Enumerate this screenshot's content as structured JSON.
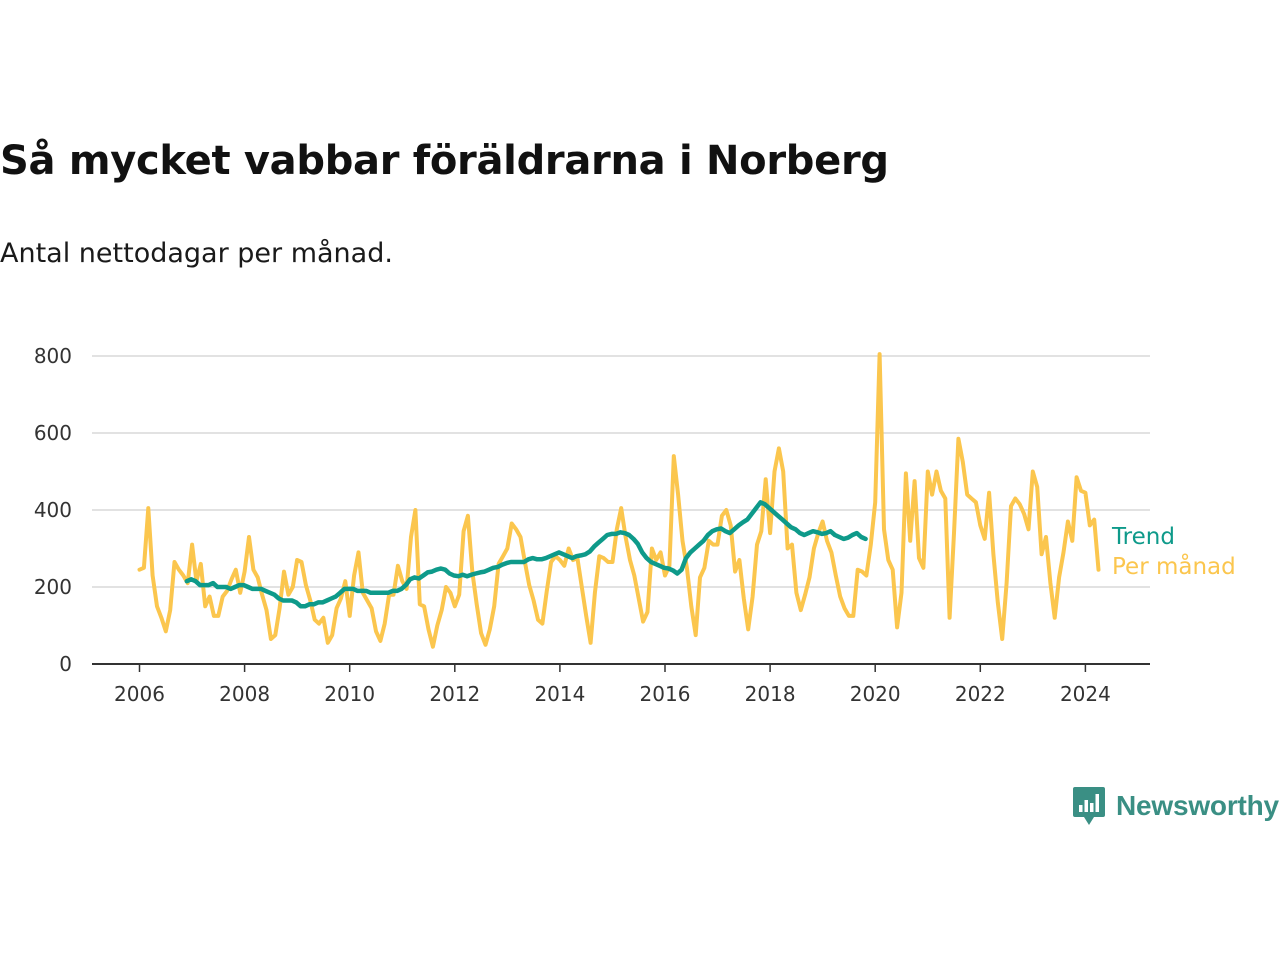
{
  "title": "Så mycket vabbar föräldrarna i Norberg",
  "subtitle": "Antal nettodagar per månad.",
  "brand": {
    "name": "Newsworthy",
    "color": "#3a8f84",
    "icon": "chart-bubble-logo"
  },
  "colors": {
    "trend": "#0e9a8a",
    "monthly": "#fbc64e",
    "grid": "#d9d9d9",
    "axis": "#333333"
  },
  "chart_data": {
    "type": "line",
    "x_unit": "decimal year",
    "xlim": [
      2006,
      2024.5
    ],
    "ylim": [
      0,
      800
    ],
    "x_ticks": [
      2006,
      2008,
      2010,
      2012,
      2014,
      2016,
      2018,
      2020,
      2022,
      2024
    ],
    "y_ticks": [
      0,
      200,
      400,
      600,
      800
    ],
    "x_tick_labels": [
      "2006",
      "2008",
      "2010",
      "2012",
      "2014",
      "2016",
      "2018",
      "2020",
      "2022",
      "2024"
    ],
    "y_tick_labels": [
      "0",
      "200",
      "400",
      "600",
      "800"
    ],
    "grid": "horizontal",
    "legend": "right of line ends",
    "series": [
      {
        "name": "Per månad",
        "x_start": 2006,
        "values": [
          245,
          250,
          405,
          230,
          150,
          120,
          85,
          140,
          265,
          245,
          230,
          210,
          310,
          215,
          260,
          150,
          175,
          125,
          125,
          175,
          190,
          220,
          245,
          185,
          240,
          330,
          245,
          225,
          180,
          140,
          65,
          75,
          145,
          240,
          180,
          200,
          270,
          265,
          205,
          165,
          115,
          105,
          120,
          55,
          75,
          145,
          170,
          215,
          125,
          230,
          290,
          185,
          165,
          145,
          85,
          60,
          105,
          180,
          180,
          255,
          215,
          195,
          330,
          400,
          155,
          150,
          90,
          45,
          100,
          140,
          200,
          185,
          150,
          180,
          345,
          385,
          240,
          155,
          80,
          50,
          90,
          150,
          260,
          280,
          300,
          365,
          350,
          330,
          265,
          205,
          165,
          115,
          105,
          190,
          265,
          280,
          270,
          255,
          300,
          270,
          275,
          200,
          125,
          55,
          185,
          280,
          275,
          265,
          265,
          350,
          405,
          330,
          270,
          230,
          170,
          110,
          135,
          300,
          270,
          290,
          230,
          255,
          540,
          440,
          320,
          250,
          150,
          75,
          225,
          250,
          320,
          310,
          310,
          385,
          400,
          360,
          240,
          270,
          170,
          90,
          175,
          310,
          345,
          480,
          340,
          500,
          560,
          500,
          300,
          310,
          185,
          140,
          180,
          225,
          300,
          340,
          370,
          320,
          290,
          230,
          175,
          145,
          125,
          125,
          245,
          240,
          230,
          310,
          420,
          805,
          350,
          270,
          245,
          95,
          185,
          495,
          320,
          475,
          275,
          250,
          500,
          440,
          500,
          450,
          430,
          120,
          340,
          585,
          525,
          440,
          430,
          420,
          360,
          325,
          445,
          285,
          160,
          65,
          210,
          410,
          430,
          415,
          390,
          350,
          500,
          460,
          285,
          330,
          210,
          120,
          225,
          290,
          370,
          320,
          485,
          450,
          445,
          360,
          375,
          245
        ]
      },
      {
        "name": "Trend",
        "x_start": 2006.9,
        "values": [
          215,
          220,
          215,
          205,
          205,
          205,
          210,
          200,
          200,
          200,
          195,
          200,
          205,
          205,
          200,
          195,
          195,
          195,
          190,
          185,
          180,
          170,
          165,
          165,
          165,
          160,
          150,
          150,
          155,
          155,
          160,
          160,
          165,
          170,
          175,
          185,
          195,
          195,
          195,
          190,
          190,
          190,
          185,
          185,
          185,
          185,
          185,
          190,
          190,
          195,
          205,
          220,
          225,
          222,
          230,
          238,
          240,
          245,
          248,
          245,
          235,
          230,
          228,
          232,
          228,
          232,
          235,
          238,
          240,
          245,
          250,
          252,
          258,
          262,
          265,
          265,
          265,
          265,
          272,
          275,
          272,
          272,
          275,
          280,
          285,
          290,
          285,
          280,
          275,
          280,
          282,
          285,
          292,
          305,
          315,
          325,
          335,
          338,
          338,
          342,
          340,
          335,
          325,
          312,
          290,
          275,
          265,
          260,
          255,
          250,
          248,
          243,
          235,
          245,
          275,
          290,
          300,
          310,
          320,
          335,
          345,
          350,
          352,
          345,
          340,
          350,
          360,
          368,
          375,
          390,
          405,
          420,
          415,
          405,
          395,
          385,
          375,
          365,
          355,
          350,
          340,
          335,
          340,
          345,
          342,
          338,
          340,
          345,
          335,
          330,
          325,
          328,
          335,
          340,
          330,
          325
        ]
      }
    ]
  }
}
